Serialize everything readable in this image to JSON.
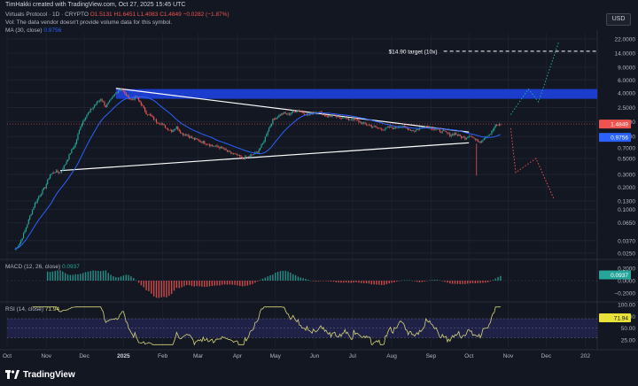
{
  "header": {
    "caption": "TimHakki created with TradingView.com, Oct 27, 2025 15:45 UTC",
    "symbol_line": {
      "name": "Virtuals Protocol · 1D · CRYPTO",
      "o": "O1.5131",
      "h": "H1.6451",
      "l": "L1.4083",
      "c": "C1.4849",
      "chg": "−0.0282 (−1.87%)"
    },
    "vol_line": "Vol: The data vendor doesn't provide volume data for this symbol.",
    "ma_line": {
      "label": "MA (30, close)",
      "value": "0.9756"
    }
  },
  "currency_button": "USD",
  "watermark": "TradingView",
  "colors": {
    "background": "#131722",
    "up": "#26a69a",
    "down": "#ef5350",
    "ma": "#2962ff",
    "zone": "#1c3fd6",
    "rsi": "#d6d47a",
    "rsi_band": "#2a2a66"
  },
  "chart_data": [
    {
      "type": "candlestick",
      "pane": "price",
      "scale": "log",
      "y_ticks": [
        22.0,
        14.0,
        9.0,
        6.0,
        4.0,
        2.5,
        1.6,
        1.0,
        0.7,
        0.5,
        0.3,
        0.2,
        0.13,
        0.1,
        0.065,
        0.037,
        0.025
      ],
      "y_tick_labels": [
        "22.0000",
        "14.0000",
        "9.0000",
        "6.0000",
        "4.0000",
        "2.5000",
        "1.6000",
        "1.0000",
        "0.7000",
        "0.5000",
        "0.3000",
        "0.2000",
        "0.1300",
        "0.1000",
        "0.0650",
        "0.0370",
        "0.0250"
      ],
      "ylim": [
        0.021,
        26
      ],
      "x_ticks": [
        "Oct",
        "Nov",
        "Dec",
        "2025",
        "Feb",
        "Mar",
        "Apr",
        "May",
        "Jun",
        "Jul",
        "Aug",
        "Sep",
        "Oct",
        "Nov",
        "Dec",
        "202"
      ],
      "x_tick_days": [
        0,
        31,
        61,
        92,
        123,
        151,
        182,
        212,
        243,
        273,
        304,
        335,
        365,
        396,
        426,
        457
      ],
      "closes_days": [
        6,
        10,
        14,
        18,
        22,
        26,
        30,
        34,
        38,
        42,
        46,
        50,
        54,
        58,
        62,
        66,
        70,
        74,
        78,
        82,
        86,
        90,
        94,
        98,
        102,
        106,
        110,
        114,
        118,
        122,
        126,
        130,
        134,
        138,
        142,
        146,
        150,
        154,
        158,
        162,
        166,
        170,
        174,
        178,
        182,
        186,
        190,
        194,
        198,
        202,
        206,
        210,
        214,
        218,
        222,
        226,
        230,
        234,
        238,
        242,
        246,
        250,
        254,
        258,
        262,
        266,
        270,
        274,
        278,
        282,
        286,
        290,
        294,
        298,
        302,
        306,
        310,
        314,
        318,
        322,
        326,
        330,
        334,
        338,
        342,
        346,
        350,
        354,
        358,
        362,
        366,
        370,
        374,
        378,
        382,
        386,
        390
      ],
      "closes": [
        0.028,
        0.034,
        0.05,
        0.08,
        0.12,
        0.16,
        0.2,
        0.3,
        0.33,
        0.32,
        0.42,
        0.6,
        0.8,
        1.4,
        1.9,
        2.3,
        2.8,
        3.3,
        2.6,
        3.2,
        4.0,
        4.6,
        3.7,
        3.2,
        3.5,
        2.8,
        2.1,
        1.9,
        1.6,
        1.5,
        1.3,
        1.2,
        1.35,
        1.1,
        1.05,
        0.95,
        0.9,
        0.85,
        0.8,
        0.75,
        0.72,
        0.7,
        0.62,
        0.58,
        0.55,
        0.5,
        0.52,
        0.56,
        0.62,
        0.8,
        1.2,
        1.7,
        1.9,
        2.1,
        2.0,
        2.2,
        2.3,
        2.1,
        2.0,
        2.15,
        2.2,
        2.0,
        1.9,
        1.95,
        1.8,
        1.85,
        1.7,
        1.75,
        1.6,
        1.5,
        1.45,
        1.35,
        1.3,
        1.25,
        1.35,
        1.3,
        1.4,
        1.35,
        1.25,
        1.2,
        1.3,
        1.4,
        1.35,
        1.25,
        1.2,
        1.15,
        1.05,
        1.1,
        1.0,
        0.95,
        1.05,
        0.9,
        0.85,
        1.0,
        1.1,
        1.4,
        1.4849
      ],
      "ma_value": 0.9756,
      "last_price": 1.4849,
      "last_price_label": "1.4849",
      "ma_label": "0.9756",
      "zone": {
        "low": 3.3,
        "high": 4.5,
        "from_day": 86
      },
      "triangle": {
        "apex_day": 365,
        "upper_start": {
          "day": 86,
          "price": 4.6
        },
        "upper_end": {
          "day": 365,
          "price": 1.15
        },
        "lower_start": {
          "day": 42,
          "price": 0.34
        },
        "lower_end": {
          "day": 365,
          "price": 0.82
        }
      },
      "target": {
        "label": "$14.90 target (10x)",
        "price": 14.9
      },
      "projection_bull": [
        {
          "day": 398,
          "price": 2.0
        },
        {
          "day": 412,
          "price": 4.5
        },
        {
          "day": 420,
          "price": 3.0
        },
        {
          "day": 436,
          "price": 20.0
        }
      ],
      "projection_bear": [
        {
          "day": 398,
          "price": 1.3
        },
        {
          "day": 402,
          "price": 0.32
        },
        {
          "day": 418,
          "price": 0.5
        },
        {
          "day": 432,
          "price": 0.14
        }
      ]
    },
    {
      "type": "histogram",
      "pane": "macd",
      "title": "MACD (12, 26, close)",
      "last_value": 0.0937,
      "last_label": "0.0937",
      "y_ticks": [
        0.2,
        0.0,
        -0.2
      ],
      "y_tick_labels": [
        "0.2000",
        "0.0000",
        "−0.2000"
      ],
      "ylim": [
        -0.3,
        0.3
      ]
    },
    {
      "type": "line",
      "pane": "rsi",
      "title": "RSI (14, close)",
      "last_value": 71.94,
      "last_label": "71.94",
      "y_ticks": [
        100,
        75,
        50,
        25
      ],
      "y_tick_labels": [
        "100.00",
        "75.00",
        "50.00",
        "25.00"
      ],
      "ylim": [
        10,
        100
      ],
      "band": [
        30,
        70
      ]
    }
  ]
}
